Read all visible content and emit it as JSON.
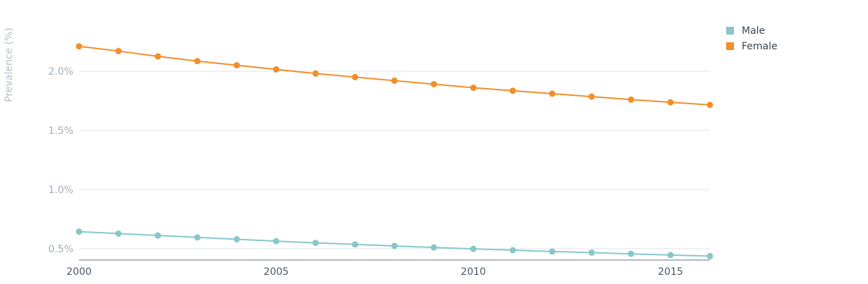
{
  "chart_data": {
    "type": "line",
    "title": "",
    "xlabel": "",
    "ylabel": "Prevalence (%)",
    "x": [
      2000,
      2001,
      2002,
      2003,
      2004,
      2005,
      2006,
      2007,
      2008,
      2009,
      2010,
      2011,
      2012,
      2013,
      2014,
      2015,
      2016
    ],
    "xticks": [
      2000,
      2005,
      2010,
      2015
    ],
    "xtick_labels": [
      "2000",
      "2005",
      "2010",
      "2015"
    ],
    "yticks": [
      0.5,
      1.0,
      1.5,
      2.0
    ],
    "ytick_labels": [
      "0.5%",
      "1.0%",
      "1.5%",
      "2.0%"
    ],
    "xlim": [
      2000,
      2016
    ],
    "ylim": [
      0.4,
      2.5
    ],
    "grid": true,
    "legend_position": "top-right",
    "series": [
      {
        "name": "Male",
        "color": "#88c7c9",
        "values": [
          0.645,
          0.628,
          0.612,
          0.596,
          0.58,
          0.564,
          0.55,
          0.537,
          0.524,
          0.511,
          0.499,
          0.488,
          0.477,
          0.467,
          0.457,
          0.447,
          0.438
        ]
      },
      {
        "name": "Female",
        "color": "#f28e2b",
        "values": [
          2.21,
          2.17,
          2.125,
          2.085,
          2.05,
          2.015,
          1.98,
          1.95,
          1.92,
          1.89,
          1.86,
          1.835,
          1.81,
          1.785,
          1.76,
          1.737,
          1.715
        ]
      }
    ]
  }
}
